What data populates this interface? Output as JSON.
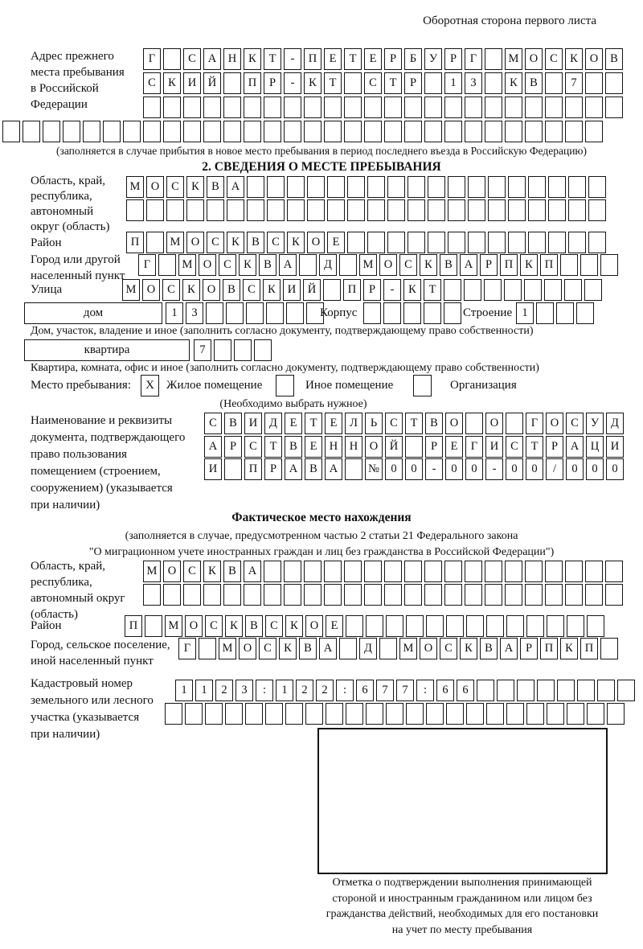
{
  "page": {
    "back_note": "Оборотная сторона первого листа"
  },
  "prev_address": {
    "label": "Адрес прежнего\nместа пребывания\nв Российской\nФедерации",
    "row1": {
      "text": "Г САНКТ-ПЕТЕРБУРГ МОСКОВ",
      "cells": 24
    },
    "row2": {
      "text": "СКИЙ ПР-КТ СТР 13 КВ 7",
      "cells": 24
    },
    "row3": {
      "text": "",
      "cells": 24
    },
    "row4": {
      "text": "",
      "cells": 30
    },
    "note": "(заполняется в случае прибытия в новое место пребывания в период последнего въезда в Российскую Федерацию)"
  },
  "section2": {
    "title": "2. СВЕДЕНИЯ О МЕСТЕ ПРЕБЫВАНИЯ",
    "oblast_label": "Область, край,\nреспублика,\nавтономный\nокруг (область)",
    "oblast_row1": {
      "text": "МОСКВА",
      "cells": 24
    },
    "oblast_row2": {
      "text": "",
      "cells": 24
    },
    "rayon_label": "Район",
    "rayon_row": {
      "text": "П МОСКВСКОЕ",
      "cells": 24
    },
    "gorod_label": "Город или другой\nнаселенный пункт",
    "gorod_row": {
      "text": "Г МОСКВА Д МОСКВАРПКП",
      "cells": 24
    },
    "ulitsa_label": "Улица",
    "ulitsa_row": {
      "text": "МОСКОВСКИЙ ПР-КТ",
      "cells": 24
    },
    "dom_box_label": "дом",
    "dom_row": {
      "text": "13",
      "cells": 8
    },
    "korpus_label": "Корпус",
    "korpus_row": {
      "text": "",
      "cells": 5
    },
    "stroenie_label": "Строение",
    "stroenie_row": {
      "text": "1",
      "cells": 4
    },
    "dom_note": "Дом, участок, владение и иное (заполнить согласно документу, подтверждающему право собственности)",
    "kvartira_box_label": "квартира",
    "kvartira_row": {
      "text": "7",
      "cells": 4
    },
    "kvartira_note": "Квартира, комната, офис и иное (заполнить согласно документу, подтверждающему право собственности)",
    "mesto_label": "Место пребывания:",
    "mesto_options": [
      {
        "label": "Жилое помещение",
        "checked": "X"
      },
      {
        "label": "Иное помещение",
        "checked": ""
      },
      {
        "label": "Организация",
        "checked": ""
      }
    ],
    "mesto_note": "(Необходимо выбрать нужное)",
    "doc_label": "Наименование и реквизиты\nдокумента, подтверждающего\nправо пользования\nпомещением (строением,\nсооружением) (указывается\nпри наличии)",
    "doc_row1": {
      "text": "СВИДЕТЕЛЬСТВО О ГОСУД",
      "cells": 21
    },
    "doc_row2": {
      "text": "АРСТВЕННОЙ РЕГИСТРАЦИ",
      "cells": 21
    },
    "doc_row3": {
      "text": "И ПРАВА №00-00-00/000",
      "cells": 21
    }
  },
  "fact_location": {
    "title": "Фактическое место нахождения",
    "note1": "(заполняется в случае, предусмотренном частью 2 статьи 21 Федерального закона",
    "note2": "\"О миграционном учете иностранных граждан и лиц без гражданства в Российской Федерации\")",
    "oblast_label": "Область, край,\nреспублика,\nавтономный округ\n(область)",
    "oblast_row1": {
      "text": "МОСКВА",
      "cells": 24
    },
    "oblast_row2": {
      "text": "",
      "cells": 24
    },
    "rayon_label": "Район",
    "rayon_row": {
      "text": "П МОСКВСКОЕ",
      "cells": 24
    },
    "gorod_label": "Город, сельское поселение,\nиной населенный пункт",
    "gorod_row": {
      "text": "Г МОСКВА Д МОСКВАРПКП",
      "cells": 22
    },
    "kadastr_label": "Кадастровый номер\nземельного или лесного\nучастка (указывается\nпри наличии)",
    "kadastr_row1": {
      "text": "1123:122:677:66",
      "cells": 23
    },
    "kadastr_row2": {
      "text": "",
      "cells": 23
    },
    "stamp_note": "Отметка о подтверждении выполнения принимающей\nстороной и иностранным гражданином или лицом без\nгражданства действий, необходимых для его постановки\nна учет по месту пребывания"
  }
}
